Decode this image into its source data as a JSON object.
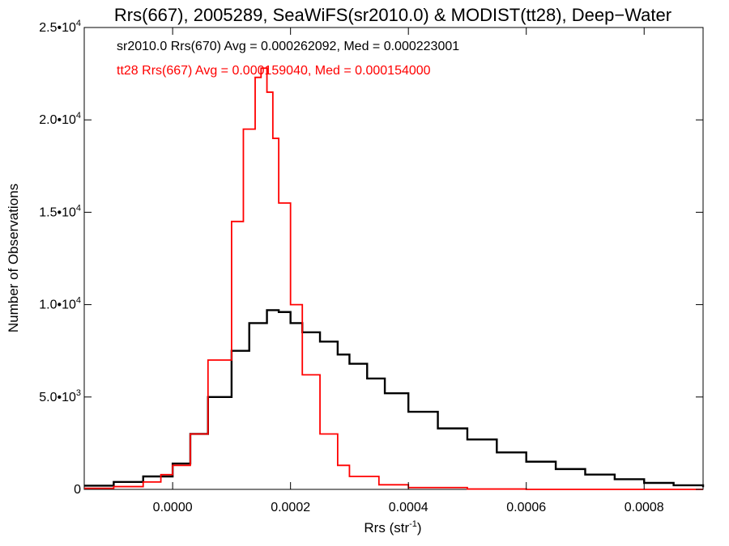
{
  "chart_data": {
    "type": "histogram",
    "title": "Rrs(667), 2005289, SeaWiFS(sr2010.0) & MODIST(tt28), Deep−Water",
    "xlabel": "Rrs (str",
    "xlabel_sup": "-1",
    "xlabel_close": ")",
    "ylabel": "Number of Observations",
    "xlim": [
      -0.00015,
      0.0009
    ],
    "ylim": [
      0,
      25000
    ],
    "x_ticks": [
      {
        "value": 0.0,
        "label": "0.0000"
      },
      {
        "value": 0.0002,
        "label": "0.0002"
      },
      {
        "value": 0.0004,
        "label": "0.0004"
      },
      {
        "value": 0.0006,
        "label": "0.0006"
      },
      {
        "value": 0.0008,
        "label": "0.0008"
      }
    ],
    "y_ticks": [
      {
        "value": 0,
        "mant": "0",
        "exp": ""
      },
      {
        "value": 5000,
        "mant": "5.0•10",
        "exp": "3"
      },
      {
        "value": 10000,
        "mant": "1.0•10",
        "exp": "4"
      },
      {
        "value": 15000,
        "mant": "1.5•10",
        "exp": "4"
      },
      {
        "value": 20000,
        "mant": "2.0•10",
        "exp": "4"
      },
      {
        "value": 25000,
        "mant": "2.5•10",
        "exp": "4"
      }
    ],
    "grid": false,
    "series": [
      {
        "name": "sr2010.0 Rrs(670)",
        "color": "#000000",
        "annotation": "sr2010.0 Rrs(670) Avg = 0.000262092, Med = 0.000223001",
        "x": [
          -0.00015,
          -0.0001,
          -5e-05,
          0.0,
          3e-05,
          6e-05,
          0.0001,
          0.00013,
          0.00016,
          0.00018,
          0.0002,
          0.00022,
          0.00025,
          0.00028,
          0.0003,
          0.00033,
          0.00036,
          0.0004,
          0.00045,
          0.0005,
          0.00055,
          0.0006,
          0.00065,
          0.0007,
          0.00075,
          0.0008,
          0.00085,
          0.0009
        ],
        "y": [
          200,
          400,
          700,
          1400,
          3000,
          5000,
          7500,
          9000,
          9700,
          9600,
          9000,
          8500,
          8000,
          7300,
          6800,
          6000,
          5200,
          4200,
          3300,
          2700,
          2000,
          1500,
          1100,
          800,
          550,
          350,
          220,
          120
        ]
      },
      {
        "name": "tt28 Rrs(667)",
        "color": "#ff0000",
        "annotation": "tt28 Rrs(667) Avg = 0.000159040, Med = 0.000154000",
        "x": [
          -0.00015,
          -0.0001,
          -5e-05,
          -2e-05,
          0.0,
          3e-05,
          6e-05,
          0.0001,
          0.00012,
          0.00014,
          0.00015,
          0.00016,
          0.00017,
          0.00018,
          0.0002,
          0.00022,
          0.00025,
          0.00028,
          0.0003,
          0.00035,
          0.0004,
          0.0005,
          0.0006,
          0.0007,
          0.0009
        ],
        "y": [
          60,
          150,
          400,
          800,
          1300,
          3000,
          7000,
          14500,
          19500,
          22300,
          22800,
          21500,
          19000,
          15500,
          10000,
          6200,
          3000,
          1300,
          700,
          250,
          100,
          20,
          0,
          0,
          0
        ]
      }
    ]
  }
}
